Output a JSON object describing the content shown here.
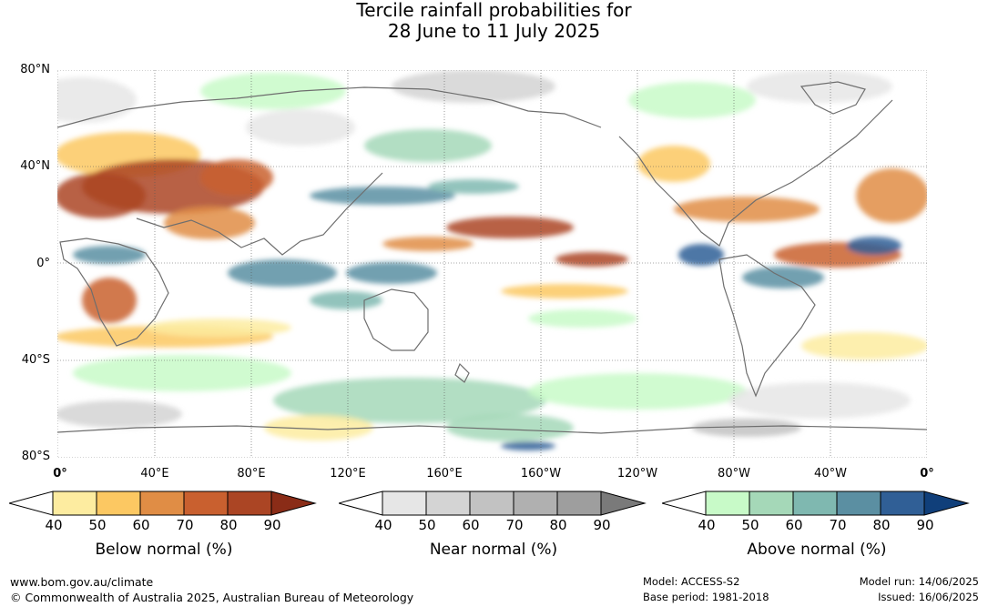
{
  "title": {
    "line1": "Tercile rainfall probabilities for",
    "line2": "28 June to 11 July 2025"
  },
  "map": {
    "lat_labels": [
      "80°N",
      "40°N",
      "0°",
      "40°S",
      "80°S"
    ],
    "lon_labels": [
      "0°",
      "40°E",
      "80°E",
      "120°E",
      "160°E",
      "160°W",
      "120°W",
      "80°W",
      "40°W",
      "0°"
    ],
    "colors": {
      "land_outline": "#6e6e6e",
      "gridline": "#555555"
    }
  },
  "legends": [
    {
      "title": "Below normal (%)",
      "ticks": [
        "40",
        "50",
        "60",
        "70",
        "80",
        "90"
      ],
      "colors": [
        "#ffffff",
        "#fdeca0",
        "#fcc862",
        "#e08d45",
        "#c9602f",
        "#ab4524",
        "#8a2c17"
      ]
    },
    {
      "title": "Near normal (%)",
      "ticks": [
        "40",
        "50",
        "60",
        "70",
        "80",
        "90"
      ],
      "colors": [
        "#ffffff",
        "#e6e6e6",
        "#d4d4d4",
        "#c2c2c2",
        "#b0b0b0",
        "#9e9e9e",
        "#7a7a7a"
      ]
    },
    {
      "title": "Above normal (%)",
      "ticks": [
        "40",
        "50",
        "60",
        "70",
        "80",
        "90"
      ],
      "colors": [
        "#ffffff",
        "#c8fac8",
        "#a5d8b8",
        "#7fb8b0",
        "#5b8fa2",
        "#305f96",
        "#103f7a"
      ]
    }
  ],
  "footer": {
    "website": "www.bom.gov.au/climate",
    "copyright": "© Commonwealth of Australia 2025, Australian Bureau of Meteorology",
    "model": "Model: ACCESS-S2",
    "base_period": "Base period: 1981-2018",
    "model_run": "Model run: 14/06/2025",
    "issued": "Issued: 16/06/2025"
  }
}
